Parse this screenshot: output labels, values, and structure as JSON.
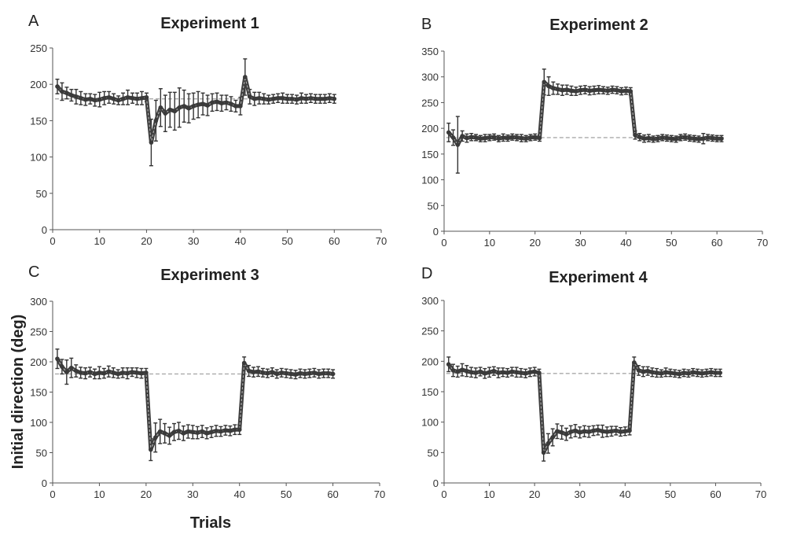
{
  "figure": {
    "ylabel": "Initial direction (deg)",
    "xlabel": "Trials"
  },
  "chart_data": [
    {
      "type": "line",
      "letter": "A",
      "title": "Experiment 1",
      "xlim": [
        0,
        70
      ],
      "ylim": [
        0,
        250
      ],
      "xticks": [
        0,
        10,
        20,
        30,
        40,
        50,
        60,
        70
      ],
      "yticks": [
        0,
        50,
        100,
        150,
        200,
        250
      ],
      "reference_value": 180,
      "series": [
        {
          "x": [
            1,
            2,
            3,
            4,
            5,
            6,
            7,
            8,
            9,
            10,
            11,
            12,
            13,
            14,
            15,
            16,
            17,
            18,
            19,
            20,
            21,
            22,
            23,
            24,
            25,
            26,
            27,
            28,
            29,
            30,
            31,
            32,
            33,
            34,
            35,
            36,
            37,
            38,
            39,
            40,
            41,
            42,
            43,
            44,
            45,
            46,
            47,
            48,
            49,
            50,
            51,
            52,
            53,
            54,
            55,
            56,
            57,
            58,
            59,
            60
          ],
          "y": [
            197,
            190,
            188,
            185,
            183,
            181,
            179,
            180,
            178,
            179,
            181,
            182,
            180,
            178,
            180,
            182,
            181,
            180,
            181,
            182,
            120,
            150,
            168,
            160,
            165,
            163,
            168,
            170,
            167,
            170,
            172,
            173,
            171,
            175,
            176,
            174,
            175,
            173,
            170,
            170,
            210,
            183,
            180,
            181,
            180,
            179,
            180,
            181,
            181,
            180,
            180,
            179,
            181,
            180,
            181,
            180,
            180,
            180,
            181,
            180
          ],
          "err": [
            10,
            12,
            8,
            8,
            10,
            9,
            8,
            7,
            8,
            10,
            9,
            8,
            7,
            6,
            8,
            10,
            7,
            8,
            9,
            6,
            32,
            28,
            26,
            25,
            24,
            26,
            27,
            22,
            20,
            18,
            18,
            15,
            14,
            12,
            12,
            11,
            10,
            10,
            8,
            12,
            25,
            10,
            9,
            8,
            7,
            6,
            6,
            6,
            7,
            6,
            6,
            6,
            7,
            6,
            6,
            6,
            6,
            6,
            6,
            6
          ]
        }
      ]
    },
    {
      "type": "line",
      "letter": "B",
      "title": "Experiment 2",
      "xlim": [
        0,
        70
      ],
      "ylim": [
        0,
        350
      ],
      "xticks": [
        0,
        10,
        20,
        30,
        40,
        50,
        60,
        70
      ],
      "yticks": [
        0,
        50,
        100,
        150,
        200,
        250,
        300,
        350
      ],
      "reference_value": 182,
      "series": [
        {
          "x": [
            1,
            2,
            3,
            4,
            5,
            6,
            7,
            8,
            9,
            10,
            11,
            12,
            13,
            14,
            15,
            16,
            17,
            18,
            19,
            20,
            21,
            22,
            23,
            24,
            25,
            26,
            27,
            28,
            29,
            30,
            31,
            32,
            33,
            34,
            35,
            36,
            37,
            38,
            39,
            40,
            41,
            42,
            43,
            44,
            45,
            46,
            47,
            48,
            49,
            50,
            51,
            52,
            53,
            54,
            55,
            56,
            57,
            58,
            59,
            60,
            61
          ],
          "y": [
            192,
            182,
            168,
            185,
            181,
            183,
            182,
            180,
            181,
            182,
            183,
            180,
            182,
            181,
            183,
            182,
            181,
            180,
            182,
            183,
            181,
            290,
            282,
            278,
            276,
            274,
            275,
            273,
            272,
            274,
            275,
            273,
            274,
            275,
            274,
            273,
            275,
            274,
            272,
            273,
            272,
            187,
            183,
            180,
            181,
            179,
            180,
            182,
            181,
            180,
            179,
            182,
            183,
            181,
            180,
            179,
            180,
            182,
            181,
            180,
            180
          ],
          "err": [
            18,
            15,
            55,
            10,
            8,
            7,
            6,
            6,
            7,
            6,
            6,
            6,
            7,
            6,
            6,
            6,
            7,
            6,
            6,
            6,
            6,
            25,
            18,
            12,
            10,
            10,
            9,
            9,
            8,
            8,
            8,
            8,
            8,
            8,
            7,
            7,
            7,
            7,
            7,
            7,
            7,
            8,
            7,
            7,
            7,
            6,
            6,
            6,
            6,
            6,
            6,
            6,
            6,
            6,
            6,
            6,
            10,
            6,
            6,
            6,
            6
          ]
        }
      ]
    },
    {
      "type": "line",
      "letter": "C",
      "title": "Experiment 3",
      "xlim": [
        0,
        70
      ],
      "ylim": [
        0,
        300
      ],
      "xticks": [
        0,
        10,
        20,
        30,
        40,
        50,
        60,
        70
      ],
      "yticks": [
        0,
        50,
        100,
        150,
        200,
        250,
        300
      ],
      "reference_value": 180,
      "series": [
        {
          "x": [
            1,
            2,
            3,
            4,
            5,
            6,
            7,
            8,
            9,
            10,
            11,
            12,
            13,
            14,
            15,
            16,
            17,
            18,
            19,
            20,
            21,
            22,
            23,
            24,
            25,
            26,
            27,
            28,
            29,
            30,
            31,
            32,
            33,
            34,
            35,
            36,
            37,
            38,
            39,
            40,
            41,
            42,
            43,
            44,
            45,
            46,
            47,
            48,
            49,
            50,
            51,
            52,
            53,
            54,
            55,
            56,
            57,
            58,
            59,
            60
          ],
          "y": [
            205,
            192,
            183,
            190,
            185,
            182,
            181,
            183,
            180,
            182,
            181,
            184,
            182,
            180,
            182,
            181,
            183,
            182,
            181,
            182,
            55,
            75,
            85,
            82,
            78,
            84,
            86,
            82,
            85,
            84,
            83,
            85,
            82,
            84,
            86,
            85,
            87,
            86,
            88,
            88,
            198,
            185,
            183,
            184,
            182,
            181,
            183,
            180,
            182,
            181,
            180,
            179,
            181,
            180,
            181,
            182,
            180,
            181,
            181,
            180
          ],
          "err": [
            16,
            12,
            20,
            16,
            10,
            9,
            9,
            8,
            8,
            10,
            8,
            9,
            8,
            7,
            8,
            9,
            7,
            8,
            8,
            7,
            18,
            24,
            20,
            16,
            14,
            14,
            14,
            12,
            11,
            11,
            10,
            10,
            9,
            9,
            9,
            8,
            8,
            8,
            8,
            8,
            10,
            9,
            8,
            8,
            7,
            7,
            7,
            7,
            7,
            7,
            7,
            7,
            7,
            7,
            7,
            7,
            7,
            7,
            7,
            7
          ]
        }
      ]
    },
    {
      "type": "line",
      "letter": "D",
      "title": "Experiment 4",
      "xlim": [
        0,
        70
      ],
      "ylim": [
        0,
        300
      ],
      "xticks": [
        0,
        10,
        20,
        30,
        40,
        50,
        60,
        70
      ],
      "yticks": [
        0,
        50,
        100,
        150,
        200,
        250,
        300
      ],
      "reference_value": 180,
      "series": [
        {
          "x": [
            1,
            2,
            3,
            4,
            5,
            6,
            7,
            8,
            9,
            10,
            11,
            12,
            13,
            14,
            15,
            16,
            17,
            18,
            19,
            20,
            21,
            22,
            23,
            24,
            25,
            26,
            27,
            28,
            29,
            30,
            31,
            32,
            33,
            34,
            35,
            36,
            37,
            38,
            39,
            40,
            41,
            42,
            43,
            44,
            45,
            46,
            47,
            48,
            49,
            50,
            51,
            52,
            53,
            54,
            55,
            56,
            57,
            58,
            59,
            60,
            61
          ],
          "y": [
            195,
            185,
            183,
            186,
            184,
            182,
            181,
            183,
            180,
            182,
            184,
            181,
            182,
            181,
            183,
            182,
            181,
            180,
            182,
            183,
            181,
            50,
            65,
            75,
            85,
            83,
            80,
            84,
            86,
            83,
            85,
            84,
            86,
            87,
            85,
            84,
            85,
            86,
            84,
            85,
            86,
            198,
            185,
            183,
            184,
            182,
            181,
            180,
            182,
            181,
            180,
            179,
            181,
            180,
            182,
            181,
            180,
            181,
            182,
            181,
            181
          ],
          "err": [
            12,
            10,
            9,
            10,
            9,
            8,
            8,
            7,
            8,
            8,
            7,
            8,
            7,
            7,
            7,
            8,
            7,
            7,
            7,
            7,
            6,
            14,
            16,
            14,
            12,
            11,
            10,
            10,
            10,
            9,
            9,
            9,
            8,
            8,
            10,
            8,
            8,
            7,
            7,
            7,
            7,
            9,
            8,
            8,
            7,
            7,
            7,
            6,
            7,
            6,
            6,
            6,
            6,
            6,
            6,
            6,
            6,
            6,
            6,
            6,
            6
          ]
        }
      ]
    }
  ]
}
